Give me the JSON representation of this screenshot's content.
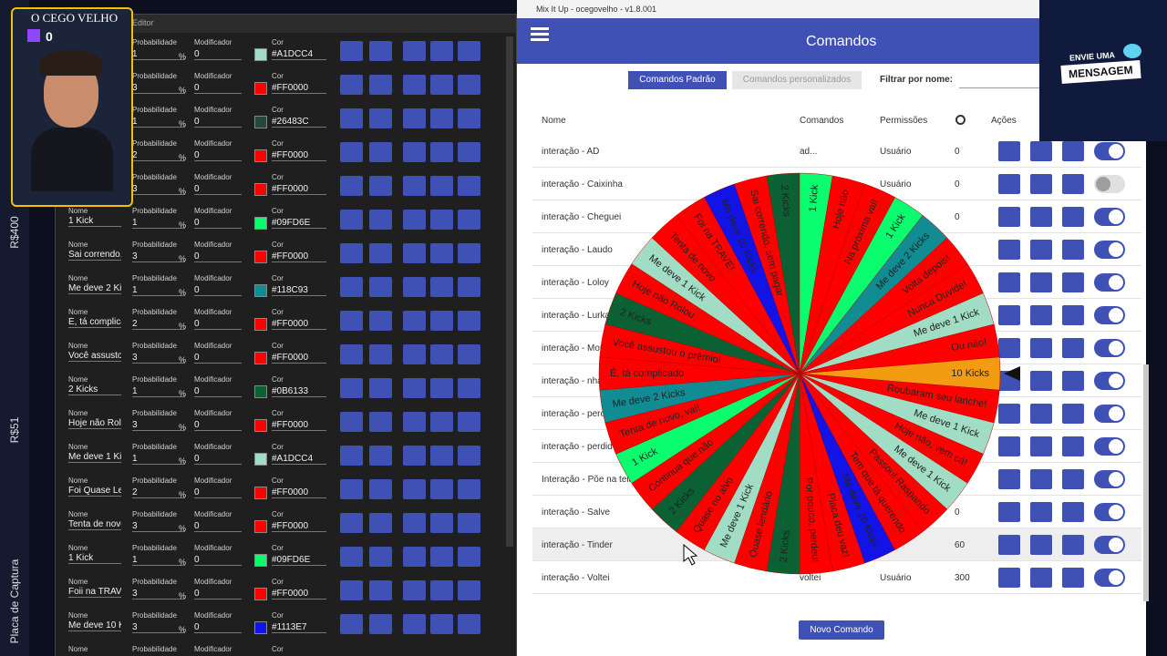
{
  "sidebar": {
    "labels": [
      "R$400",
      "R$51",
      "Placa de Captura"
    ]
  },
  "streamer": {
    "name": "O CEGO VELHO",
    "count": "0"
  },
  "editor": {
    "title": "o - Editor",
    "field_labels": {
      "name": "Nome",
      "probability": "Probabilidade",
      "modifier": "Modificador",
      "color": "Cor"
    },
    "percent": "%",
    "rows": [
      {
        "probability": "1",
        "modifier": "0",
        "color": "#A1DCC4"
      },
      {
        "probability": "3",
        "modifier": "0",
        "color": "#FF0000"
      },
      {
        "probability": "1",
        "modifier": "0",
        "color": "#26483C"
      },
      {
        "probability": "2",
        "modifier": "0",
        "color": "#FF0000"
      },
      {
        "probability": "3",
        "modifier": "0",
        "color": "#FF0000"
      },
      {
        "name": "1 Kick",
        "probability": "1",
        "modifier": "0",
        "color": "#09FD6E"
      },
      {
        "name": "Sai correndo,",
        "probability": "3",
        "modifier": "0",
        "color": "#FF0000"
      },
      {
        "name": "Me deve 2 Kic",
        "probability": "1",
        "modifier": "0",
        "color": "#118C93"
      },
      {
        "name": "É, tá complica",
        "probability": "2",
        "modifier": "0",
        "color": "#FF0000"
      },
      {
        "name": "Você assustou",
        "probability": "3",
        "modifier": "0",
        "color": "#FF0000"
      },
      {
        "name": "2 Kicks",
        "probability": "1",
        "modifier": "0",
        "color": "#0B6133"
      },
      {
        "name": "Hoje não Rolo",
        "probability": "3",
        "modifier": "0",
        "color": "#FF0000"
      },
      {
        "name": "Me deve 1 Kic",
        "probability": "1",
        "modifier": "0",
        "color": "#A1DCC4"
      },
      {
        "name": "Foi Quase Ler",
        "probability": "2",
        "modifier": "0",
        "color": "#FF0000"
      },
      {
        "name": "Tenta de novo",
        "probability": "3",
        "modifier": "0",
        "color": "#FF0000"
      },
      {
        "name": "1 Kick",
        "probability": "1",
        "modifier": "0",
        "color": "#09FD6E"
      },
      {
        "name": "Foii na TRAVE",
        "probability": "3",
        "modifier": "0",
        "color": "#FF0000"
      },
      {
        "name": "Me deve 10 K",
        "probability": "3",
        "modifier": "0",
        "color": "#1113E7"
      }
    ]
  },
  "mixitup": {
    "window_title": "Mix It Up - ocegovelho - v1.8.001",
    "header": "Comandos",
    "tabs": [
      "Comandos Padrão",
      "Comandos personalizados"
    ],
    "filter_label": "Filtrar por nome:",
    "columns": [
      "Nome",
      "Comandos",
      "Permissões",
      "Ações"
    ],
    "rows": [
      {
        "name": "interação - AD",
        "commands": "ad...",
        "permission": "Usuário",
        "cooldown": "0",
        "enabled": true
      },
      {
        "name": "interação - Caixinha",
        "permission": "Usuário",
        "cooldown": "0",
        "enabled": false
      },
      {
        "name": "interação - Cheguei",
        "cooldown": "0",
        "enabled": true
      },
      {
        "name": "interação - Laudo",
        "enabled": true
      },
      {
        "name": "interação - Loloy",
        "enabled": true
      },
      {
        "name": "interação - Lurka",
        "enabled": true
      },
      {
        "name": "interação - Mor",
        "enabled": true
      },
      {
        "name": "interação - nha",
        "enabled": true
      },
      {
        "name": "interação - pero",
        "enabled": true
      },
      {
        "name": "interação - perdid",
        "enabled": true
      },
      {
        "name": "Interação - Põe na tela",
        "enabled": true
      },
      {
        "name": "interação - Salve",
        "cooldown": "0",
        "enabled": true
      },
      {
        "name": "interação - Tinder",
        "cooldown": "60",
        "enabled": true
      },
      {
        "name": "interação - Voltei",
        "commands": "voltei",
        "permission": "Usuário",
        "cooldown": "300",
        "enabled": true
      }
    ],
    "new_button": "Novo Comando"
  },
  "overlay": {
    "line1": "ENVIE UMA",
    "line2": "MENSAGEM"
  },
  "wheel": {
    "segments": [
      {
        "label": "10 Kicks",
        "color": "#F39C12"
      },
      {
        "label": "Roubaram seu lanche!",
        "color": "#FF0000"
      },
      {
        "label": "Me deve 1 Kick",
        "color": "#A1DCC4"
      },
      {
        "label": "Hoje não, vem cá!",
        "color": "#FF0000"
      },
      {
        "label": "Me deve 1 Kick",
        "color": "#A1DCC4"
      },
      {
        "label": "Passou! Raspando",
        "color": "#FF0000"
      },
      {
        "label": "Tem que tá querendo",
        "color": "#FF0000"
      },
      {
        "label": "Me deve 10 Kicks",
        "color": "#1113E7"
      },
      {
        "label": "Placa deu vaz!",
        "color": "#FF0000"
      },
      {
        "label": "Por pouco, perdeu!",
        "color": "#FF0000"
      },
      {
        "label": "2 Kicks",
        "color": "#0B6133"
      },
      {
        "label": "Quase lendário",
        "color": "#FF0000"
      },
      {
        "label": "Me deve 1 Kick",
        "color": "#A1DCC4"
      },
      {
        "label": "Quase no alvo",
        "color": "#FF0000"
      },
      {
        "label": "2 Kicks",
        "color": "#0B6133"
      },
      {
        "label": "Continua que não",
        "color": "#FF0000"
      },
      {
        "label": "1 Kick",
        "color": "#09FD6E"
      },
      {
        "label": "Tenta de novo, vai!",
        "color": "#FF0000"
      },
      {
        "label": "Me deve 2 Kicks",
        "color": "#118C93"
      },
      {
        "label": "É, tá complicado",
        "color": "#FF0000"
      },
      {
        "label": "Você assustou o prêmio!",
        "color": "#FF0000"
      },
      {
        "label": "2 Kicks",
        "color": "#0B6133"
      },
      {
        "label": "Hoje não Rolou",
        "color": "#FF0000"
      },
      {
        "label": "Me deve 1 Kick",
        "color": "#A1DCC4"
      },
      {
        "label": "Tenta de novo",
        "color": "#FF0000"
      },
      {
        "label": "Foi na TRAVE!",
        "color": "#FF0000"
      },
      {
        "label": "Me deve 10 Kicks",
        "color": "#1113E7"
      },
      {
        "label": "Sai correndo, sem pagar",
        "color": "#FF0000"
      },
      {
        "label": "2 Kicks",
        "color": "#0B6133"
      },
      {
        "label": "1 Kick",
        "color": "#09FD6E"
      },
      {
        "label": "Hoje não",
        "color": "#FF0000"
      },
      {
        "label": "Na próxima vai!",
        "color": "#FF0000"
      },
      {
        "label": "1 Kick",
        "color": "#09FD6E"
      },
      {
        "label": "Me deve 2 Kicks",
        "color": "#118C93"
      },
      {
        "label": "Volta depois!",
        "color": "#FF0000"
      },
      {
        "label": "Nunca Duvide!",
        "color": "#FF0000"
      },
      {
        "label": "Me deve 1 Kick",
        "color": "#A1DCC4"
      },
      {
        "label": "Ou não!",
        "color": "#FF0000"
      }
    ]
  }
}
